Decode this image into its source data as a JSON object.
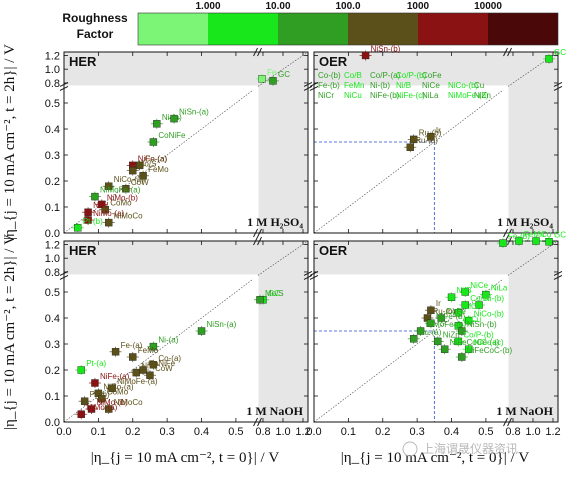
{
  "legend": {
    "title_line1": "Roughness",
    "title_line2": "Factor",
    "ticks": [
      "1.000",
      "10.00",
      "100.0",
      "1000",
      "10000"
    ],
    "colors": [
      "#7cf576",
      "#18e81b",
      "#2f9e22",
      "#5b5019",
      "#8a1212",
      "#4a0808"
    ]
  },
  "axes": {
    "x_title": "|η_{j = 10 mA cm⁻², t = 0}| / V",
    "y_title": "|η_{j = 10 mA cm⁻², t = 2h}| / V",
    "x_ticks": [
      "0.0",
      "0.1",
      "0.2",
      "0.3",
      "0.4",
      "0.5",
      "0.8",
      "1.0",
      "1.2"
    ],
    "y_ticks": [
      "0.0",
      "0.1",
      "0.2",
      "0.3",
      "0.4",
      "0.5",
      "0.8",
      "1.0",
      "1.2"
    ]
  },
  "watermark": "上海谓晟仪器资讯",
  "chart_data": [
    {
      "type": "scatter",
      "title": "HER",
      "electrolyte": "1 M H₂SO₄",
      "points": [
        {
          "label": "Fe",
          "x": 0.79,
          "y": 0.86,
          "color": "#7cf576"
        },
        {
          "label": "GC",
          "x": 0.9,
          "y": 0.83,
          "color": "#2f9e22"
        },
        {
          "label": "Ni-(a)",
          "x": 0.27,
          "y": 0.42,
          "color": "#2f9e22"
        },
        {
          "label": "NiSn-(a)",
          "x": 0.32,
          "y": 0.44,
          "color": "#2f9e22"
        },
        {
          "label": "CoNiFe",
          "x": 0.26,
          "y": 0.35,
          "color": "#2f9e22"
        },
        {
          "label": "NiFe-(a)",
          "x": 0.2,
          "y": 0.26,
          "color": "#8a1212"
        },
        {
          "label": "Co-(a)",
          "x": 0.22,
          "y": 0.26,
          "color": "#5b5019"
        },
        {
          "label": "Mo/S",
          "x": 0.2,
          "y": 0.24,
          "color": "#5b5019"
        },
        {
          "label": "FeMo",
          "x": 0.23,
          "y": 0.22,
          "color": "#5b5019"
        },
        {
          "label": "NiCo-(a)",
          "x": 0.13,
          "y": 0.18,
          "color": "#5b5019"
        },
        {
          "label": "CoW",
          "x": 0.18,
          "y": 0.17,
          "color": "#5b5019"
        },
        {
          "label": "NiMoFe-(a)",
          "x": 0.09,
          "y": 0.14,
          "color": "#2f9e22"
        },
        {
          "label": "NiMo-(b)",
          "x": 0.11,
          "y": 0.11,
          "color": "#8a1212"
        },
        {
          "label": "CoMo",
          "x": 0.12,
          "y": 0.09,
          "color": "#5b5019"
        },
        {
          "label": "NiW",
          "x": 0.07,
          "y": 0.08,
          "color": "#8a1212"
        },
        {
          "label": "NiMo-(a)",
          "x": 0.07,
          "y": 0.05,
          "color": "#8a1212"
        },
        {
          "label": "Pt-(b)",
          "x": 0.04,
          "y": 0.02,
          "color": "#18e81b"
        },
        {
          "label": "NiMoCo",
          "x": 0.13,
          "y": 0.04,
          "color": "#5b5019"
        }
      ]
    },
    {
      "type": "scatter",
      "title": "OER",
      "electrolyte": "1 M H₂SO₄",
      "points": [
        {
          "label": "NiSn-(b)",
          "x": 0.15,
          "y": 1.2,
          "color": "#8a1212"
        },
        {
          "label": "GC",
          "x": 1.16,
          "y": 1.15,
          "color": "#18e81b"
        },
        {
          "label": "Ru-(b)",
          "x": 0.29,
          "y": 0.36,
          "color": "#5b5019"
        },
        {
          "label": "Ru-(a)",
          "x": 0.28,
          "y": 0.33,
          "color": "#5b5019"
        },
        {
          "label": "Ir",
          "x": 0.34,
          "y": 0.37,
          "color": "#5b5019"
        }
      ],
      "text_labels": [
        "Co-(b)",
        "Co/B",
        "Co/P-(a)",
        "Co/P-(b)",
        "CoFe",
        "Fe-(b)",
        "FeMn",
        "Ni-(b)",
        "Ni/B",
        "NiCe",
        "NiCo-(b)",
        "Cu",
        "NiCr",
        "NiCu",
        "NiFe-(b)",
        "NiFe-(c)",
        "NiLa",
        "NiMoFe-(b)",
        "NiZn"
      ]
    },
    {
      "type": "scatter",
      "title": "HER",
      "electrolyte": "1 M NaOH",
      "points": [
        {
          "label": "GC",
          "x": 0.8,
          "y": 0.47,
          "color": "#18e81b"
        },
        {
          "label": "Mo/S",
          "x": 0.77,
          "y": 0.47,
          "color": "#2f9e22"
        },
        {
          "label": "NiSn-(a)",
          "x": 0.4,
          "y": 0.35,
          "color": "#2f9e22"
        },
        {
          "label": "Ni-(a)",
          "x": 0.26,
          "y": 0.29,
          "color": "#2f9e22"
        },
        {
          "label": "Fe-(a)",
          "x": 0.15,
          "y": 0.27,
          "color": "#5b5019"
        },
        {
          "label": "FeMo",
          "x": 0.2,
          "y": 0.25,
          "color": "#5b5019"
        },
        {
          "label": "Co-(a)",
          "x": 0.26,
          "y": 0.22,
          "color": "#5b5019"
        },
        {
          "label": "CoNiFe",
          "x": 0.23,
          "y": 0.2,
          "color": "#5b5019"
        },
        {
          "label": "NiW",
          "x": 0.21,
          "y": 0.19,
          "color": "#5b5019"
        },
        {
          "label": "CoW",
          "x": 0.25,
          "y": 0.18,
          "color": "#5b5019"
        },
        {
          "label": "Pt-(a)",
          "x": 0.05,
          "y": 0.2,
          "color": "#18e81b"
        },
        {
          "label": "NiFe-(a)",
          "x": 0.09,
          "y": 0.15,
          "color": "#8a1212"
        },
        {
          "label": "NiMoFe-(a)",
          "x": 0.14,
          "y": 0.13,
          "color": "#5b5019"
        },
        {
          "label": "NiCo-(a)",
          "x": 0.1,
          "y": 0.11,
          "color": "#5b5019"
        },
        {
          "label": "CoMo",
          "x": 0.11,
          "y": 0.09,
          "color": "#5b5019"
        },
        {
          "label": "Pt-(b)",
          "x": 0.06,
          "y": 0.08,
          "color": "#5b5019"
        },
        {
          "label": "NiMo-(b)",
          "x": 0.08,
          "y": 0.05,
          "color": "#8a1212"
        },
        {
          "label": "NiMoCo",
          "x": 0.13,
          "y": 0.05,
          "color": "#5b5019"
        },
        {
          "label": "NiMo-(a)",
          "x": 0.05,
          "y": 0.03,
          "color": "#8a1212"
        }
      ]
    },
    {
      "type": "scatter",
      "title": "OER",
      "electrolyte": "1 M NaOH",
      "points": [
        {
          "label": "Fe-(b)",
          "x": 0.7,
          "y": 1.22,
          "color": "#18e81b"
        },
        {
          "label": "FeMn",
          "x": 0.86,
          "y": 1.25,
          "color": "#18e81b"
        },
        {
          "label": "Cu",
          "x": 1.03,
          "y": 1.25,
          "color": "#18e81b"
        },
        {
          "label": "GC",
          "x": 1.16,
          "y": 1.24,
          "color": "#18e81b"
        },
        {
          "label": "NiCe",
          "x": 0.44,
          "y": 0.5,
          "color": "#18e81b"
        },
        {
          "label": "Ni/B",
          "x": 0.4,
          "y": 0.48,
          "color": "#18e81b"
        },
        {
          "label": "NiLa",
          "x": 0.5,
          "y": 0.49,
          "color": "#18e81b"
        },
        {
          "label": "Co/B",
          "x": 0.44,
          "y": 0.45,
          "color": "#18e81b"
        },
        {
          "label": "Ni-(b)",
          "x": 0.48,
          "y": 0.45,
          "color": "#18e81b"
        },
        {
          "label": "Ir",
          "x": 0.34,
          "y": 0.43,
          "color": "#5b5019"
        },
        {
          "label": "NiCr",
          "x": 0.42,
          "y": 0.42,
          "color": "#18e81b"
        },
        {
          "label": "Ru-(b)",
          "x": 0.33,
          "y": 0.4,
          "color": "#5b5019"
        },
        {
          "label": "CoFe",
          "x": 0.37,
          "y": 0.4,
          "color": "#2f9e22"
        },
        {
          "label": "NiCo-(b)",
          "x": 0.45,
          "y": 0.39,
          "color": "#18e81b"
        },
        {
          "label": "NiFe-(b)",
          "x": 0.34,
          "y": 0.38,
          "color": "#2f9e22"
        },
        {
          "label": "NiCu",
          "x": 0.42,
          "y": 0.37,
          "color": "#18e81b"
        },
        {
          "label": "NiSn-(b)",
          "x": 0.43,
          "y": 0.35,
          "color": "#2f9e22"
        },
        {
          "label": "NiMoFe-(b)",
          "x": 0.31,
          "y": 0.35,
          "color": "#2f9e22"
        },
        {
          "label": "Ru-(a)",
          "x": 0.29,
          "y": 0.32,
          "color": "#2f9e22"
        },
        {
          "label": "NiZn",
          "x": 0.36,
          "y": 0.31,
          "color": "#2f9e22"
        },
        {
          "label": "Co/P-(b)",
          "x": 0.42,
          "y": 0.31,
          "color": "#18e81b"
        },
        {
          "label": "NiFeCoCe-(a)",
          "x": 0.38,
          "y": 0.28,
          "color": "#2f9e22"
        },
        {
          "label": "NiCo-(c)",
          "x": 0.45,
          "y": 0.28,
          "color": "#18e81b"
        },
        {
          "label": "NiFeCoC-(b)",
          "x": 0.43,
          "y": 0.25,
          "color": "#2f9e22"
        }
      ]
    }
  ]
}
